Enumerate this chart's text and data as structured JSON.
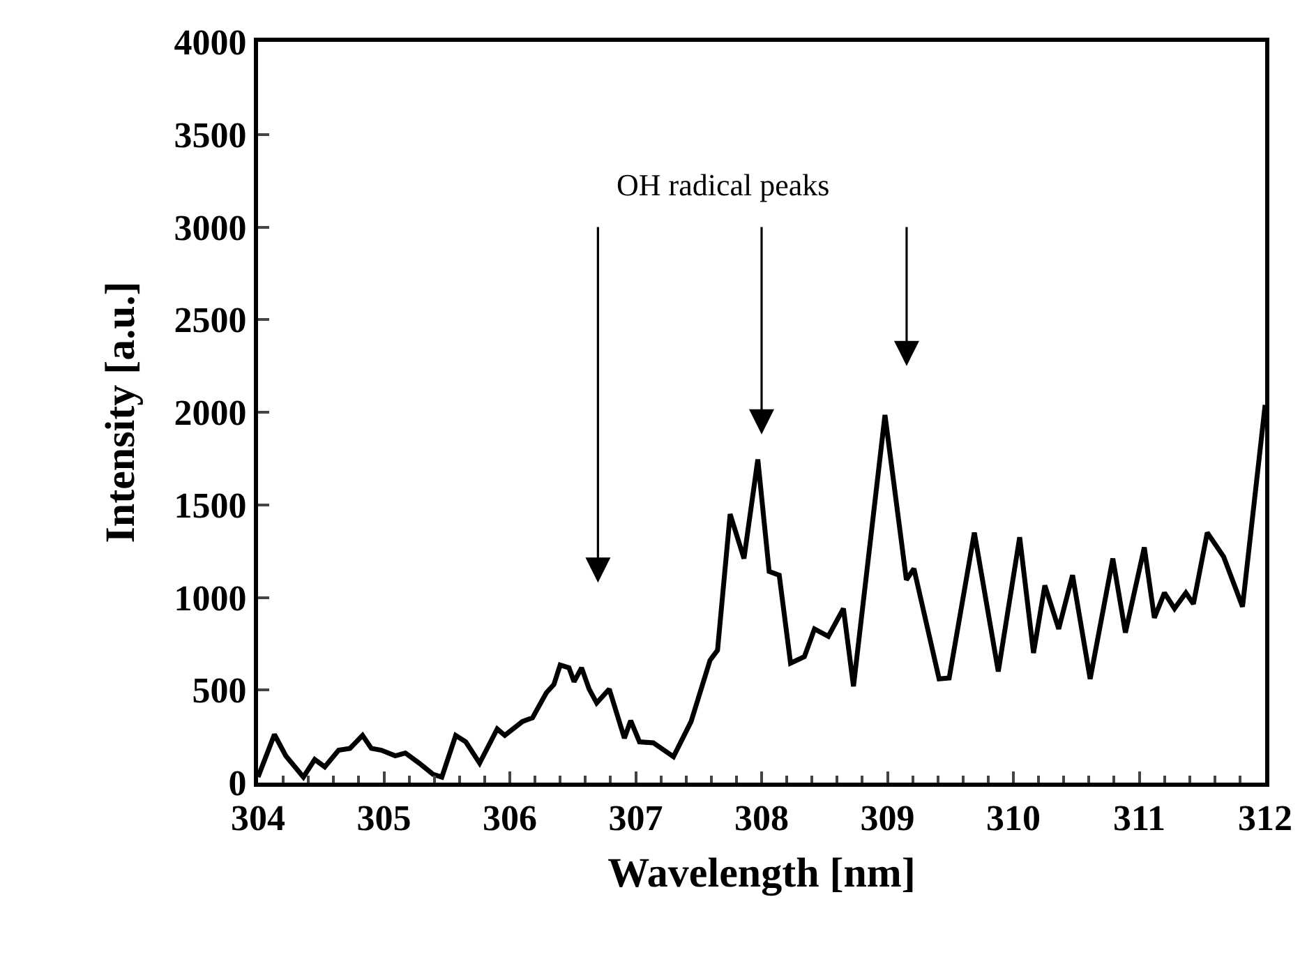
{
  "chart_data": {
    "type": "line",
    "xlabel": "Wavelength [nm]",
    "ylabel": "Intensity [a.u.]",
    "x": [
      304.0,
      304.13,
      304.22,
      304.36,
      304.45,
      304.53,
      304.64,
      304.73,
      304.83,
      304.9,
      304.98,
      305.09,
      305.17,
      305.28,
      305.39,
      305.46,
      305.57,
      305.65,
      305.76,
      305.9,
      305.96,
      306.1,
      306.18,
      306.29,
      306.35,
      306.4,
      306.47,
      306.51,
      306.57,
      306.63,
      306.69,
      306.79,
      306.91,
      306.96,
      307.03,
      307.14,
      307.3,
      307.44,
      307.59,
      307.65,
      307.75,
      307.86,
      307.97,
      308.06,
      308.14,
      308.23,
      308.34,
      308.42,
      308.53,
      308.65,
      308.73,
      308.98,
      309.15,
      309.21,
      309.41,
      309.49,
      309.69,
      309.88,
      310.05,
      310.16,
      310.25,
      310.36,
      310.47,
      310.61,
      310.79,
      310.89,
      311.04,
      311.12,
      311.2,
      311.28,
      311.37,
      311.43,
      311.54,
      311.67,
      311.82,
      312.0
    ],
    "series": [
      {
        "color": "#000000",
        "values": [
          30,
          260,
          145,
          30,
          125,
          85,
          175,
          185,
          255,
          185,
          175,
          145,
          160,
          105,
          45,
          30,
          255,
          220,
          105,
          290,
          255,
          330,
          350,
          485,
          530,
          635,
          620,
          545,
          620,
          505,
          430,
          505,
          240,
          335,
          220,
          215,
          140,
          330,
          660,
          715,
          1450,
          1210,
          1745,
          1140,
          1120,
          645,
          680,
          830,
          790,
          940,
          520,
          1985,
          1095,
          1155,
          560,
          565,
          1350,
          600,
          1325,
          700,
          1065,
          830,
          1120,
          560,
          1210,
          810,
          1270,
          890,
          1025,
          940,
          1025,
          965,
          1350,
          1220,
          950,
          2040
        ]
      }
    ],
    "xlim": [
      304,
      312
    ],
    "xticks": [
      304,
      305,
      306,
      307,
      308,
      309,
      310,
      311,
      312
    ],
    "ylim": [
      0,
      4000
    ],
    "yticks": [
      0,
      500,
      1000,
      1500,
      2000,
      2500,
      3000,
      3500,
      4000
    ],
    "grid": false,
    "marker": "none",
    "line_style": "solid",
    "annotations": [
      "OH radical peaks"
    ]
  }
}
